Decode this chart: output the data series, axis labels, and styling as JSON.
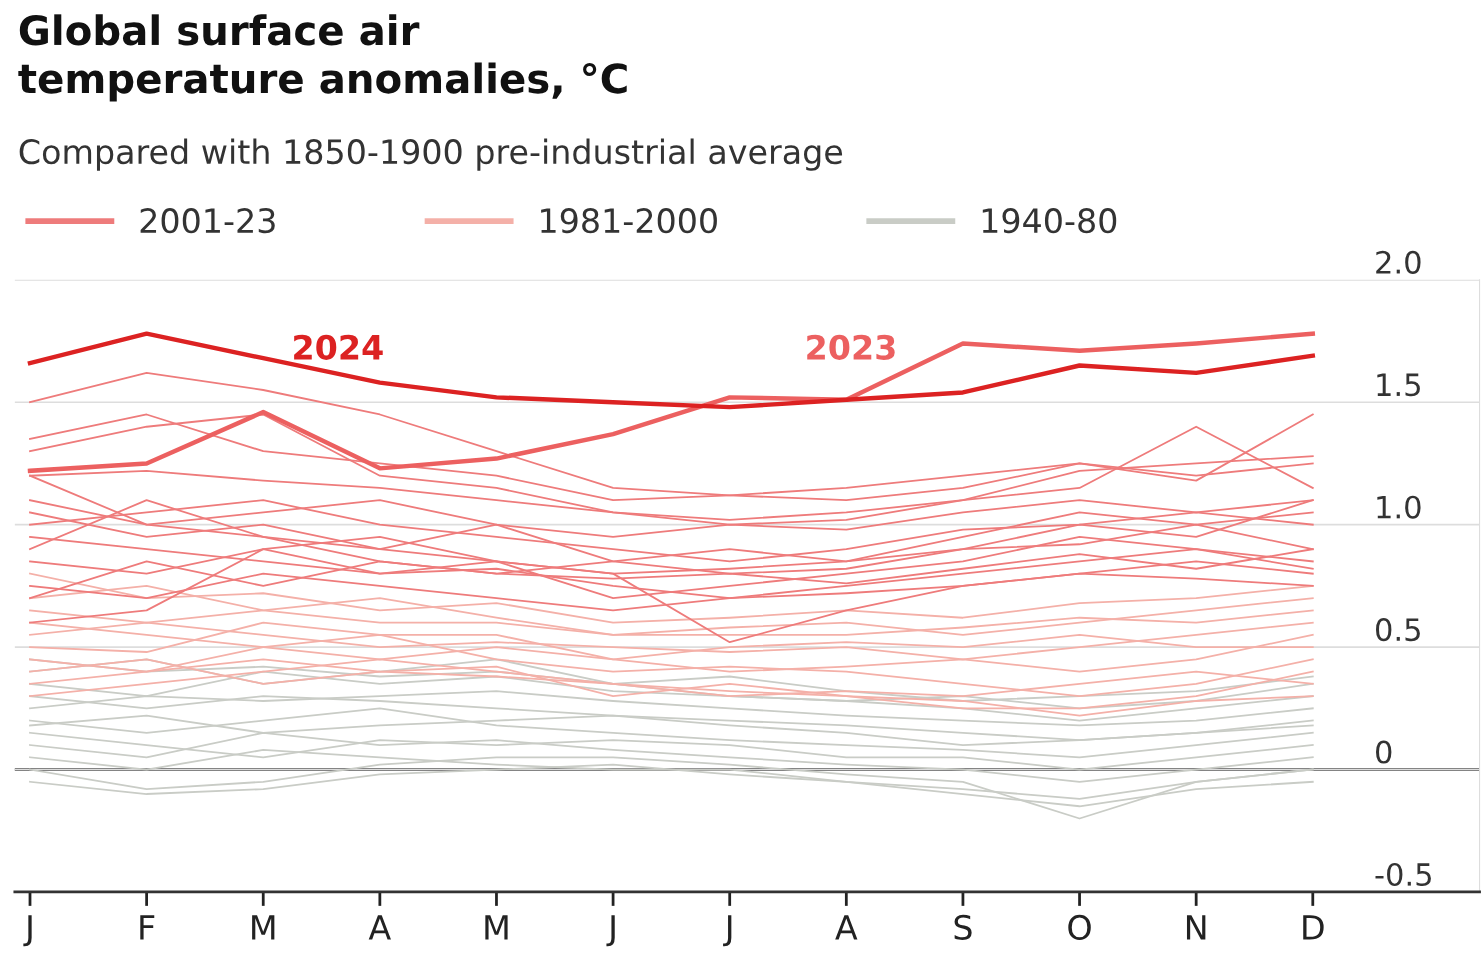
{
  "chart_data": {
    "type": "line",
    "title": "Global surface air\ntemperature anomalies, °C",
    "subtitle": "Compared with 1850-1900 pre-industrial average",
    "categories": [
      "J",
      "F",
      "M",
      "A",
      "M",
      "J",
      "J",
      "A",
      "S",
      "O",
      "N",
      "D"
    ],
    "ylim": [
      -0.5,
      2.0
    ],
    "yticks": [
      -0.5,
      0,
      0.5,
      {
        "value": 1,
        "label": "1.0"
      },
      1.5,
      {
        "value": 2,
        "label": "2.0"
      }
    ],
    "grid": "y",
    "legend": "top left",
    "marker": "none",
    "line_style": "solid",
    "ref_lines": [
      {
        "axis": "y",
        "value": 0,
        "color": "#333333"
      }
    ],
    "series": [
      {
        "name": "1940-80",
        "color": "#c9ccc6",
        "values": [
          0.3,
          0.25,
          0.3,
          0.28,
          0.25,
          0.22,
          0.2,
          0.18,
          0.15,
          0.12,
          0.15,
          0.2
        ]
      },
      {
        "color": "#c9ccc6",
        "values": [
          0.1,
          0.05,
          0.15,
          0.1,
          0.12,
          0.08,
          0.05,
          0.02,
          0.0,
          -0.05,
          0.0,
          0.05
        ]
      },
      {
        "color": "#c9ccc6",
        "values": [
          0.4,
          0.45,
          0.35,
          0.4,
          0.45,
          0.35,
          0.3,
          0.28,
          0.25,
          0.2,
          0.25,
          0.3
        ]
      },
      {
        "color": "#c9ccc6",
        "values": [
          0.2,
          0.15,
          0.2,
          0.25,
          0.18,
          0.15,
          0.12,
          0.1,
          0.08,
          0.05,
          0.1,
          0.15
        ]
      },
      {
        "color": "#c9ccc6",
        "values": [
          0.0,
          -0.08,
          -0.05,
          0.02,
          0.05,
          0.05,
          0.02,
          -0.02,
          -0.05,
          -0.2,
          -0.05,
          0.0
        ]
      },
      {
        "color": "#c9ccc6",
        "values": [
          0.25,
          0.3,
          0.28,
          0.3,
          0.32,
          0.28,
          0.25,
          0.22,
          0.2,
          0.18,
          0.2,
          0.25
        ]
      },
      {
        "color": "#c9ccc6",
        "values": [
          0.15,
          0.1,
          0.05,
          0.12,
          0.1,
          0.12,
          0.1,
          0.05,
          0.05,
          0.0,
          0.05,
          0.1
        ]
      },
      {
        "color": "#c9ccc6",
        "values": [
          0.35,
          0.3,
          0.4,
          0.35,
          0.38,
          0.32,
          0.3,
          0.28,
          0.3,
          0.25,
          0.28,
          0.35
        ]
      },
      {
        "color": "#c9ccc6",
        "values": [
          0.05,
          0.0,
          0.08,
          0.05,
          0.02,
          0.0,
          0.0,
          -0.05,
          -0.08,
          -0.12,
          -0.05,
          0.0
        ]
      },
      {
        "color": "#c9ccc6",
        "values": [
          0.45,
          0.4,
          0.42,
          0.38,
          0.4,
          0.35,
          0.38,
          0.32,
          0.28,
          0.3,
          0.32,
          0.38
        ]
      },
      {
        "color": "#c9ccc6",
        "values": [
          0.18,
          0.22,
          0.15,
          0.18,
          0.2,
          0.22,
          0.18,
          0.15,
          0.1,
          0.12,
          0.15,
          0.18
        ]
      },
      {
        "color": "#c9ccc6",
        "values": [
          -0.05,
          -0.1,
          -0.08,
          -0.02,
          0.0,
          0.02,
          -0.02,
          -0.05,
          -0.1,
          -0.15,
          -0.08,
          -0.05
        ]
      },
      {
        "name": "1981-2000",
        "color": "#f4b0a8",
        "values": [
          0.6,
          0.55,
          0.5,
          0.45,
          0.5,
          0.45,
          0.4,
          0.42,
          0.45,
          0.4,
          0.45,
          0.55
        ]
      },
      {
        "color": "#f4b0a8",
        "values": [
          0.45,
          0.4,
          0.5,
          0.55,
          0.45,
          0.4,
          0.42,
          0.4,
          0.35,
          0.3,
          0.35,
          0.45
        ]
      },
      {
        "color": "#f4b0a8",
        "values": [
          0.7,
          0.75,
          0.65,
          0.6,
          0.6,
          0.55,
          0.58,
          0.6,
          0.55,
          0.6,
          0.65,
          0.7
        ]
      },
      {
        "color": "#f4b0a8",
        "values": [
          0.35,
          0.4,
          0.45,
          0.4,
          0.38,
          0.35,
          0.3,
          0.32,
          0.3,
          0.35,
          0.4,
          0.35
        ]
      },
      {
        "color": "#f4b0a8",
        "values": [
          0.55,
          0.6,
          0.55,
          0.5,
          0.52,
          0.5,
          0.48,
          0.5,
          0.45,
          0.5,
          0.55,
          0.6
        ]
      },
      {
        "color": "#f4b0a8",
        "values": [
          0.4,
          0.45,
          0.35,
          0.4,
          0.42,
          0.3,
          0.35,
          0.3,
          0.25,
          0.25,
          0.3,
          0.4
        ]
      },
      {
        "color": "#f4b0a8",
        "values": [
          0.8,
          0.7,
          0.72,
          0.65,
          0.68,
          0.6,
          0.62,
          0.65,
          0.62,
          0.68,
          0.7,
          0.75
        ]
      },
      {
        "color": "#f4b0a8",
        "values": [
          0.3,
          0.35,
          0.4,
          0.45,
          0.4,
          0.35,
          0.32,
          0.3,
          0.28,
          0.22,
          0.28,
          0.3
        ]
      },
      {
        "color": "#f4b0a8",
        "values": [
          0.5,
          0.48,
          0.6,
          0.55,
          0.55,
          0.45,
          0.5,
          0.52,
          0.5,
          0.55,
          0.5,
          0.5
        ]
      },
      {
        "color": "#f4b0a8",
        "values": [
          0.65,
          0.6,
          0.65,
          0.7,
          0.62,
          0.55,
          0.55,
          0.55,
          0.58,
          0.62,
          0.6,
          0.65
        ]
      },
      {
        "name": "2001-23",
        "color": "#ee7b7b",
        "values": [
          1.2,
          1.22,
          1.18,
          1.15,
          1.1,
          1.05,
          1.02,
          1.05,
          1.1,
          1.22,
          1.25,
          1.28
        ]
      },
      {
        "color": "#ee7b7b",
        "values": [
          1.5,
          1.62,
          1.55,
          1.45,
          1.3,
          1.15,
          1.12,
          1.1,
          1.15,
          1.25,
          1.18,
          1.45
        ]
      },
      {
        "color": "#ee7b7b",
        "values": [
          1.05,
          0.95,
          1.0,
          0.9,
          0.85,
          0.8,
          0.82,
          0.85,
          0.9,
          1.0,
          0.95,
          1.1
        ]
      },
      {
        "color": "#ee7b7b",
        "values": [
          0.95,
          0.9,
          0.85,
          0.8,
          0.82,
          0.75,
          0.7,
          0.75,
          0.8,
          0.85,
          0.9,
          0.82
        ]
      },
      {
        "color": "#ee7b7b",
        "values": [
          1.3,
          1.4,
          1.45,
          1.2,
          1.15,
          1.05,
          1.0,
          1.02,
          1.1,
          1.15,
          1.4,
          1.15
        ]
      },
      {
        "color": "#ee7b7b",
        "values": [
          0.6,
          0.65,
          0.9,
          0.8,
          0.85,
          0.8,
          0.52,
          0.65,
          0.75,
          0.8,
          0.85,
          0.8
        ]
      },
      {
        "color": "#ee7b7b",
        "values": [
          0.85,
          0.8,
          0.9,
          0.95,
          0.85,
          0.7,
          0.75,
          0.8,
          0.85,
          0.95,
          0.9,
          0.85
        ]
      },
      {
        "color": "#ee7b7b",
        "values": [
          1.1,
          1.0,
          0.95,
          0.85,
          0.8,
          0.85,
          0.9,
          0.85,
          0.95,
          1.05,
          1.0,
          1.05
        ]
      },
      {
        "color": "#ee7b7b",
        "values": [
          0.75,
          0.7,
          0.8,
          0.75,
          0.7,
          0.65,
          0.7,
          0.72,
          0.75,
          0.8,
          0.78,
          0.75
        ]
      },
      {
        "color": "#ee7b7b",
        "values": [
          1.0,
          1.05,
          1.1,
          1.0,
          0.95,
          0.9,
          0.85,
          0.9,
          0.98,
          1.0,
          1.05,
          1.0
        ]
      },
      {
        "color": "#ee7b7b",
        "values": [
          0.9,
          1.1,
          0.95,
          0.9,
          1.0,
          0.85,
          0.8,
          0.82,
          0.9,
          0.92,
          1.0,
          0.9
        ]
      },
      {
        "color": "#ee7b7b",
        "values": [
          1.2,
          1.0,
          1.05,
          1.1,
          1.0,
          0.95,
          1.0,
          0.98,
          1.05,
          1.1,
          1.05,
          1.1
        ]
      },
      {
        "color": "#ee7b7b",
        "values": [
          0.7,
          0.85,
          0.75,
          0.85,
          0.8,
          0.78,
          0.8,
          0.76,
          0.82,
          0.88,
          0.82,
          0.9
        ]
      },
      {
        "color": "#ee7b7b",
        "values": [
          1.35,
          1.45,
          1.3,
          1.25,
          1.2,
          1.1,
          1.12,
          1.15,
          1.2,
          1.25,
          1.2,
          1.25
        ]
      },
      {
        "name": "2023",
        "color": "#ec6060",
        "values": [
          1.22,
          1.25,
          1.46,
          1.23,
          1.27,
          1.37,
          1.52,
          1.51,
          1.74,
          1.71,
          1.74,
          1.78
        ]
      },
      {
        "name": "2024",
        "color": "#dc2222",
        "values": [
          1.66,
          1.78,
          1.68,
          1.58,
          1.52,
          1.5,
          1.48,
          1.51,
          1.54,
          1.65,
          1.62,
          1.69
        ]
      }
    ]
  }
}
